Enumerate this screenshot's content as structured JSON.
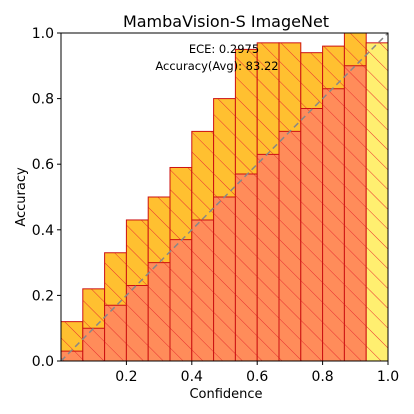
{
  "chart_data": {
    "type": "bar",
    "title": "MambaVision-S  ImageNet",
    "xlabel": "Confidence",
    "ylabel": "Accuracy",
    "xlim": [
      0.0,
      1.0
    ],
    "ylim": [
      0.0,
      1.0
    ],
    "xticks": [
      "0.2",
      "0.4",
      "0.6",
      "0.8",
      "1.0"
    ],
    "yticks": [
      "0.0",
      "0.2",
      "0.4",
      "0.6",
      "0.8",
      "1.0"
    ],
    "annotations": [
      "ECE: 0.2975",
      "Accuracy(Avg): 83.22"
    ],
    "n_bins": 15,
    "series": [
      {
        "values": [
          0.03,
          0.1,
          0.17,
          0.23,
          0.3,
          0.37,
          0.43,
          0.5,
          0.57,
          0.63,
          0.7,
          0.77,
          0.83,
          0.9,
          0.97
        ]
      },
      {
        "values": [
          0.12,
          0.22,
          0.33,
          0.43,
          0.5,
          0.59,
          0.7,
          0.8,
          0.95,
          0.97,
          0.97,
          0.94,
          0.96,
          1.0,
          0.97
        ]
      }
    ],
    "diagonal": true,
    "colors": {
      "lower": "#ff8c5a",
      "upper": "#ffc030",
      "last_bin": "#ffef70",
      "edge": "#cc1111",
      "hatch": "#e83030",
      "diagonal": "#888888"
    }
  }
}
